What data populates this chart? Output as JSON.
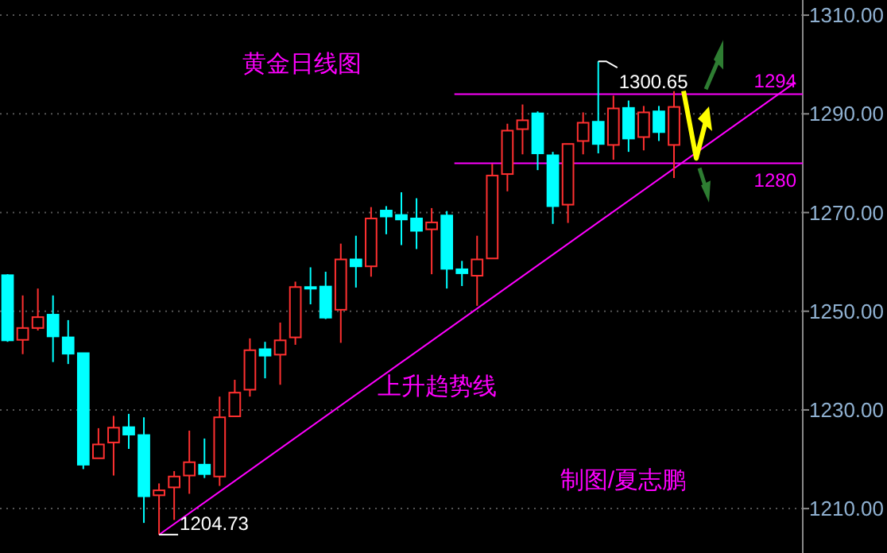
{
  "chart_data": {
    "type": "candlestick",
    "title": "黄金日线图",
    "categories": [
      null,
      null,
      null,
      null,
      null,
      null,
      null,
      null,
      null,
      null,
      null,
      null,
      null,
      null,
      null,
      null,
      null,
      null,
      null,
      null,
      null,
      null,
      null,
      null,
      null,
      null,
      null,
      null,
      null,
      null,
      null,
      null,
      null,
      null,
      null,
      null,
      null,
      null,
      null,
      null,
      null,
      null,
      null,
      null,
      null,
      null,
      null,
      null,
      null,
      null,
      null,
      null,
      null
    ],
    "ohlc": [
      [
        1257.3,
        1257.5,
        1243.8,
        1244.1
      ],
      [
        1244.2,
        1253.2,
        1241.3,
        1246.6
      ],
      [
        1246.6,
        1254.6,
        1246.1,
        1248.8
      ],
      [
        1249.3,
        1253.2,
        1239.7,
        1244.9
      ],
      [
        1244.7,
        1248.2,
        1239.3,
        1241.4
      ],
      [
        1241.5,
        1241.5,
        1218.0,
        1218.9
      ],
      [
        1220.2,
        1226.3,
        1220.2,
        1223.0
      ],
      [
        1223.4,
        1228.8,
        1216.7,
        1226.4
      ],
      [
        1226.5,
        1229.2,
        1222.1,
        1225.0
      ],
      [
        1224.9,
        1228.5,
        1207.1,
        1212.5
      ],
      [
        1212.7,
        1215.1,
        1204.73,
        1213.7
      ],
      [
        1214.3,
        1217.6,
        1207.7,
        1216.5
      ],
      [
        1216.7,
        1225.8,
        1213.0,
        1219.4
      ],
      [
        1218.9,
        1224.2,
        1216.2,
        1217.0
      ],
      [
        1216.5,
        1232.7,
        1214.6,
        1228.5
      ],
      [
        1228.7,
        1236.1,
        1228.7,
        1233.5
      ],
      [
        1234.1,
        1244.5,
        1232.7,
        1242.1
      ],
      [
        1242.3,
        1243.8,
        1236.4,
        1241.0
      ],
      [
        1241.2,
        1247.7,
        1235.1,
        1244.1
      ],
      [
        1244.7,
        1256.0,
        1243.2,
        1254.9
      ],
      [
        1254.9,
        1258.9,
        1251.4,
        1254.6
      ],
      [
        1255.0,
        1258.0,
        1248.4,
        1248.7
      ],
      [
        1250.3,
        1263.7,
        1243.6,
        1260.5
      ],
      [
        1260.5,
        1265.3,
        1254.8,
        1259.1
      ],
      [
        1259.1,
        1271.1,
        1257.0,
        1268.8
      ],
      [
        1270.4,
        1271.3,
        1265.6,
        1269.2
      ],
      [
        1269.5,
        1274.1,
        1263.4,
        1268.6
      ],
      [
        1268.8,
        1272.9,
        1262.6,
        1266.3
      ],
      [
        1266.6,
        1270.9,
        1257.5,
        1268.0
      ],
      [
        1269.4,
        1270.3,
        1254.6,
        1258.6
      ],
      [
        1258.5,
        1260.2,
        1255.1,
        1257.7
      ],
      [
        1257.2,
        1265.3,
        1251.1,
        1260.5
      ],
      [
        1260.7,
        1279.9,
        1260.7,
        1277.5
      ],
      [
        1277.8,
        1288.0,
        1274.3,
        1286.6
      ],
      [
        1286.9,
        1291.9,
        1281.8,
        1288.7
      ],
      [
        1290.1,
        1290.5,
        1278.6,
        1282.0
      ],
      [
        1281.6,
        1282.3,
        1267.7,
        1271.3
      ],
      [
        1271.6,
        1283.9,
        1267.9,
        1283.9
      ],
      [
        1284.5,
        1290.3,
        1281.8,
        1288.2
      ],
      [
        1288.4,
        1300.65,
        1282.0,
        1283.9
      ],
      [
        1283.7,
        1293.7,
        1280.7,
        1291.1
      ],
      [
        1291.2,
        1292.7,
        1282.3,
        1285.0
      ],
      [
        1285.3,
        1291.6,
        1282.6,
        1290.3
      ],
      [
        1290.5,
        1291.6,
        1284.5,
        1286.3
      ],
      [
        1283.7,
        1294.6,
        1277.0,
        1291.4
      ],
      null,
      null,
      null,
      null,
      null,
      null,
      null,
      null
    ],
    "colors": [
      "#00ffff",
      "#ff3030",
      "#ff3030",
      "#00ffff",
      "#00ffff",
      "#00ffff",
      "#ff3030",
      "#ff3030",
      "#00ffff",
      "#00ffff",
      "#ff3030",
      "#ff3030",
      "#ff3030",
      "#00ffff",
      "#ff3030",
      "#ff3030",
      "#ff3030",
      "#00ffff",
      "#ff3030",
      "#ff3030",
      "#00ffff",
      "#00ffff",
      "#ff3030",
      "#00ffff",
      "#ff3030",
      "#00ffff",
      "#00ffff",
      "#00ffff",
      "#ff3030",
      "#00ffff",
      "#00ffff",
      "#ff3030",
      "#ff3030",
      "#ff3030",
      "#ff3030",
      "#00ffff",
      "#00ffff",
      "#ff3030",
      "#ff3030",
      "#00ffff",
      "#ff3030",
      "#00ffff",
      "#ff3030",
      "#00ffff",
      "#ff3030",
      null,
      null,
      null,
      null,
      null,
      null,
      null,
      null
    ],
    "series": [
      {
        "type": "line",
        "color": "#ff00ff",
        "values": [
          null,
          null,
          null,
          null,
          null,
          null,
          null,
          null,
          null,
          null,
          1204.7,
          null,
          null,
          null,
          null,
          null,
          null,
          null,
          null,
          null,
          null,
          null,
          null,
          null,
          null,
          null,
          null,
          null,
          null,
          null,
          null,
          null,
          null,
          null,
          null,
          null,
          null,
          null,
          null,
          null,
          null,
          null,
          null,
          null,
          null,
          null,
          null,
          null,
          null,
          null,
          null,
          null,
          1296.4
        ]
      }
    ],
    "ref_lines": [
      {
        "axis": "y",
        "value": 1294,
        "label": "1294",
        "color": "#ff00ff"
      },
      {
        "axis": "y",
        "value": 1280,
        "label": "1280",
        "color": "#ff00ff"
      }
    ],
    "annotations": [
      "1300.65",
      "1204.73",
      "上升趋势线",
      "制图/夏志鹏"
    ],
    "ylim": [
      1201,
      1310.5
    ],
    "yticks": [
      {
        "value": 1210,
        "label": "1210.00"
      },
      {
        "value": 1230,
        "label": "1230.00"
      },
      {
        "value": 1250,
        "label": "1250.00"
      },
      {
        "value": 1270,
        "label": "1270.00"
      },
      {
        "value": 1290,
        "label": "1290.00"
      },
      {
        "value": 1310,
        "label": "1310.00"
      }
    ],
    "grid": "y",
    "tick_labels": "y"
  }
}
